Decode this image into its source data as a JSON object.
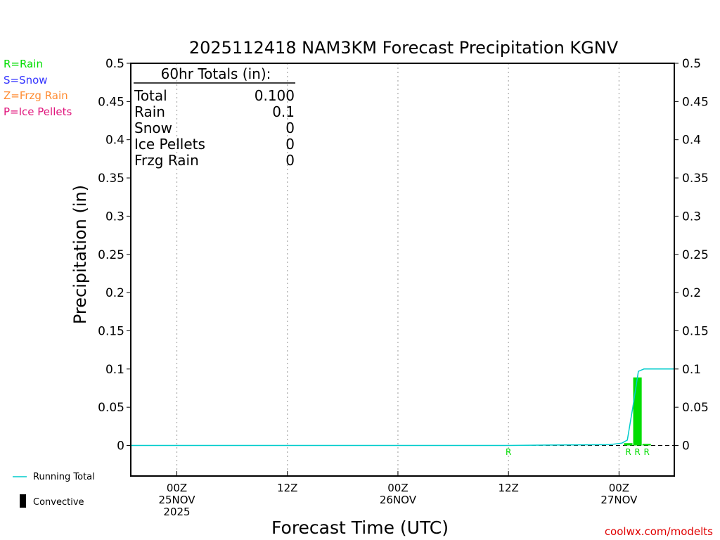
{
  "chart_data": {
    "type": "bar",
    "title": "2025112418 NAM3KM Forecast Precipitation KGNV",
    "xlabel": "Forecast Time (UTC)",
    "ylabel": "Precipitation (in)",
    "ylim": [
      -0.04,
      0.5
    ],
    "yticks": [
      0,
      0.05,
      0.1,
      0.15,
      0.2,
      0.25,
      0.3,
      0.35,
      0.4,
      0.45,
      0.5
    ],
    "ytick_labels": [
      "0",
      "0.05",
      "0.1",
      "0.15",
      "0.2",
      "0.25",
      "0.3",
      "0.35",
      "0.4",
      "0.45",
      "0.5"
    ],
    "x_unit": "forecast hour",
    "xlim": [
      -5,
      54
    ],
    "xticks": [
      {
        "hour": 0,
        "lines": [
          "00Z",
          "25NOV",
          "2025"
        ]
      },
      {
        "hour": 12,
        "lines": [
          "12Z"
        ]
      },
      {
        "hour": 24,
        "lines": [
          "00Z",
          "26NOV"
        ]
      },
      {
        "hour": 36,
        "lines": [
          "12Z"
        ]
      },
      {
        "hour": 48,
        "lines": [
          "00Z",
          "27NOV"
        ]
      }
    ],
    "grid": "vertical-dotted",
    "bars": [
      {
        "hour": 49,
        "value": 0.003,
        "type": "R"
      },
      {
        "hour": 50,
        "value": 0.089,
        "type": "R"
      },
      {
        "hour": 51,
        "value": 0.002,
        "type": "R"
      }
    ],
    "type_markers": [
      {
        "hour": 36,
        "label": "R"
      },
      {
        "hour": 49,
        "label": "R"
      },
      {
        "hour": 50,
        "label": "R"
      },
      {
        "hour": 51,
        "label": "R"
      }
    ],
    "running_total": [
      [
        -5,
        0
      ],
      [
        36,
        0
      ],
      [
        40,
        0.0005
      ],
      [
        47,
        0.001
      ],
      [
        48.3,
        0.003
      ],
      [
        48.9,
        0.007
      ],
      [
        49.5,
        0.05
      ],
      [
        50.1,
        0.097
      ],
      [
        50.7,
        0.1
      ],
      [
        54,
        0.1
      ]
    ],
    "colors": {
      "rain": "#00dd00",
      "snow": "#3333ff",
      "frzg_rain": "#ff8c33",
      "ice_pellets": "#e0157c",
      "running_total": "#00cccc",
      "convective": "#000000",
      "credit": "#e00000"
    }
  },
  "totals": {
    "header": "60hr Totals (in):",
    "rows": [
      {
        "label": "Total",
        "value": "0.100"
      },
      {
        "label": "Rain",
        "value": "0.1"
      },
      {
        "label": "Snow",
        "value": "0"
      },
      {
        "label": "Ice Pellets",
        "value": "0"
      },
      {
        "label": "Frzg Rain",
        "value": "0"
      }
    ]
  },
  "type_legend": {
    "rain": "R=Rain",
    "snow": "S=Snow",
    "frzg_rain": "Z=Frzg Rain",
    "ice_pellets": "P=Ice Pellets"
  },
  "line_legend": {
    "running_total": "Running Total",
    "convective": "Convective"
  },
  "credit": "coolwx.com/modelts"
}
